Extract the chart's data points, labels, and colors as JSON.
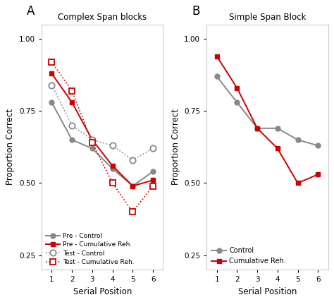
{
  "panel_A_title": "Complex Span blocks",
  "panel_B_title": "Simple Span Block",
  "xlabel": "Serial Position",
  "ylabel": "Proportion Correct",
  "panel_A_label": "A",
  "panel_B_label": "B",
  "x": [
    1,
    2,
    3,
    4,
    5,
    6
  ],
  "pre_control": [
    0.78,
    0.65,
    0.62,
    0.55,
    0.49,
    0.54
  ],
  "pre_cumreh": [
    0.88,
    0.78,
    0.65,
    0.56,
    0.49,
    0.51
  ],
  "test_control": [
    0.84,
    0.7,
    0.65,
    0.63,
    0.58,
    0.62
  ],
  "test_cumreh": [
    0.92,
    0.82,
    0.64,
    0.5,
    0.4,
    0.49
  ],
  "B_control": [
    0.87,
    0.78,
    0.69,
    0.69,
    0.65,
    0.63
  ],
  "B_cumreh": [
    0.94,
    0.83,
    0.69,
    0.62,
    0.5,
    0.53
  ],
  "color_gray": "#888888",
  "color_red": "#CC0000",
  "bg_color": "#ffffff",
  "fig_bg_color": "#ffffff",
  "ylim_A": [
    0.2,
    1.05
  ],
  "ylim_B": [
    0.2,
    1.05
  ],
  "yticks": [
    0.25,
    0.5,
    0.75,
    1.0
  ],
  "spine_color": "#cccccc",
  "legend_A": [
    "Pre - Control",
    "Pre - Cumulative Reh.",
    "Test - Control",
    "Test - Cumulative Reh."
  ],
  "legend_B": [
    "Control",
    "Cumulative Reh."
  ]
}
